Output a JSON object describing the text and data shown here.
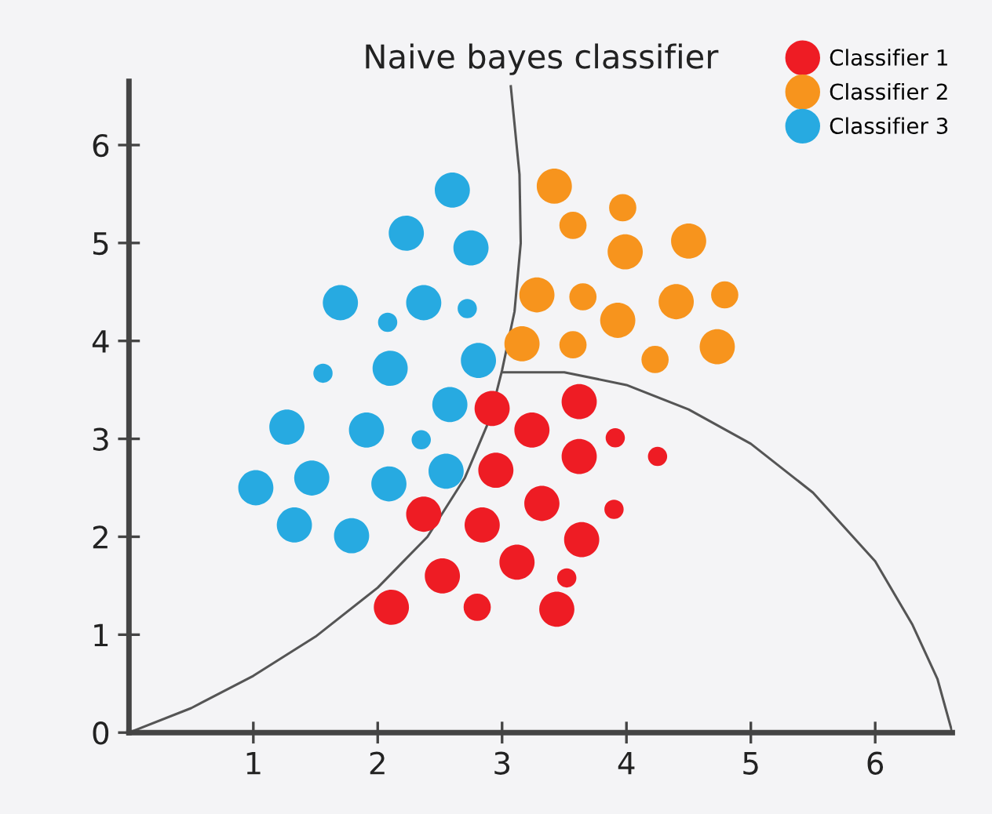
{
  "chart_data": {
    "type": "bubble",
    "title": "Naive bayes classifier",
    "xlim": [
      0,
      6.62
    ],
    "ylim": [
      0,
      6.65
    ],
    "xticks": [
      1,
      2,
      3,
      4,
      5,
      6
    ],
    "yticks": [
      0,
      1,
      2,
      3,
      4,
      5,
      6
    ],
    "grid": false,
    "legend": "top right",
    "marker": "circle",
    "series": [
      {
        "name": "Classifier 1",
        "color": "#ee1c24",
        "x": [
          2.92,
          3.62,
          3.24,
          3.91,
          4.25,
          3.62,
          2.95,
          3.32,
          3.9,
          2.37,
          2.84,
          3.64,
          3.12,
          3.52,
          2.52,
          2.11,
          2.8,
          3.44
        ],
        "values": [
          3.31,
          3.38,
          3.09,
          3.01,
          2.82,
          2.82,
          2.68,
          2.34,
          2.28,
          2.23,
          2.12,
          1.97,
          1.74,
          1.58,
          1.6,
          1.28,
          1.28,
          1.26
        ],
        "sizes": [
          1,
          1,
          1,
          0.3,
          0.3,
          1,
          1,
          1,
          0.3,
          1,
          1,
          1,
          1,
          0.3,
          1,
          1,
          0.6,
          1
        ]
      },
      {
        "name": "Classifier 2",
        "color": "#f7941d",
        "x": [
          3.42,
          3.97,
          3.57,
          3.99,
          4.5,
          3.28,
          3.65,
          3.93,
          4.4,
          4.79,
          3.16,
          3.57,
          4.23,
          4.73
        ],
        "values": [
          5.58,
          5.36,
          5.18,
          4.91,
          5.02,
          4.47,
          4.45,
          4.21,
          4.4,
          4.47,
          3.97,
          3.96,
          3.81,
          3.94
        ],
        "sizes": [
          1,
          0.6,
          0.6,
          1,
          1,
          1,
          0.6,
          1,
          1,
          0.6,
          1,
          0.6,
          0.6,
          1
        ]
      },
      {
        "name": "Classifier 3",
        "color": "#27aae1",
        "x": [
          2.6,
          2.23,
          2.75,
          1.7,
          2.37,
          2.08,
          2.72,
          1.56,
          2.1,
          2.81,
          2.58,
          1.27,
          1.91,
          2.35,
          1.02,
          1.47,
          2.09,
          2.55,
          1.33,
          1.79
        ],
        "values": [
          5.54,
          5.1,
          4.95,
          4.39,
          4.39,
          4.19,
          4.33,
          3.67,
          3.72,
          3.8,
          3.35,
          3.12,
          3.09,
          2.99,
          2.5,
          2.6,
          2.54,
          2.67,
          2.12,
          2.01
        ],
        "sizes": [
          1,
          1,
          1,
          1,
          1,
          0.3,
          0.3,
          0.3,
          1,
          1,
          1,
          1,
          1,
          0.3,
          1,
          1,
          1,
          1,
          1,
          1
        ]
      },
      {
        "type": "line",
        "marker": "none",
        "color": "#555555",
        "x": [
          0,
          0.5,
          1.0,
          1.5,
          2.0,
          2.4,
          2.7,
          2.9,
          3.0,
          3.1,
          3.15,
          3.14,
          3.07
        ],
        "values": [
          0,
          0.25,
          0.58,
          0.98,
          1.48,
          2.0,
          2.6,
          3.2,
          3.7,
          4.3,
          5.0,
          5.7,
          6.6
        ]
      },
      {
        "type": "line",
        "marker": "none",
        "color": "#555555",
        "x": [
          3.0,
          3.5,
          4.0,
          4.5,
          5.0,
          5.5,
          6.0,
          6.3,
          6.5,
          6.62
        ],
        "values": [
          3.68,
          3.68,
          3.55,
          3.3,
          2.95,
          2.45,
          1.75,
          1.1,
          0.55,
          0
        ]
      }
    ]
  }
}
